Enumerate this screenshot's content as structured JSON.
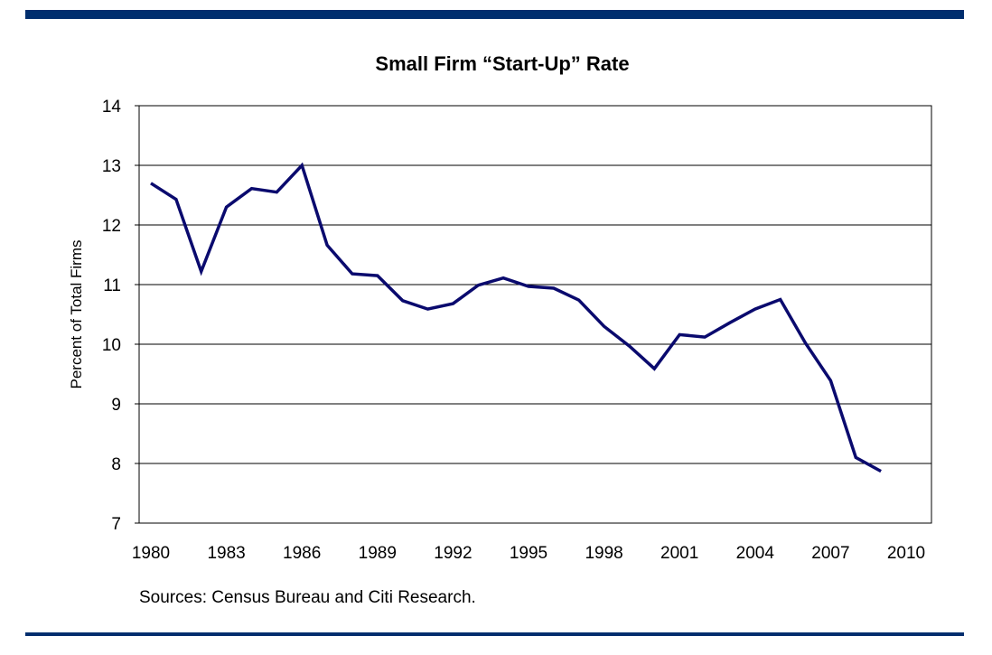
{
  "colors": {
    "bar": "#002e6e",
    "line": "#0a0a6e",
    "grid": "#000000"
  },
  "chart_data": {
    "type": "line",
    "title": "Small Firm “Start-Up” Rate",
    "xlabel": "",
    "ylabel": "Percent of Total Firms",
    "ylim": [
      7,
      14
    ],
    "xlim": [
      1980,
      2010
    ],
    "yticks": [
      "14",
      "13",
      "12",
      "11",
      "10",
      "9",
      "8",
      "7"
    ],
    "yticks_values": [
      14,
      13,
      12,
      11,
      10,
      9,
      8,
      7
    ],
    "xticks": [
      "1980",
      "1983",
      "1986",
      "1989",
      "1992",
      "1995",
      "1998",
      "2001",
      "2004",
      "2007",
      "2010"
    ],
    "xticks_values": [
      1980,
      1983,
      1986,
      1989,
      1992,
      1995,
      1998,
      2001,
      2004,
      2007,
      2010
    ],
    "grid": true,
    "legend": "none",
    "annotation": "Sources: Census Bureau and Citi Research.",
    "series": [
      {
        "name": "Small Firm Start-Up Rate",
        "x": [
          1980,
          1981,
          1982,
          1983,
          1984,
          1985,
          1986,
          1987,
          1988,
          1989,
          1990,
          1991,
          1992,
          1993,
          1994,
          1995,
          1996,
          1997,
          1998,
          1999,
          2000,
          2001,
          2002,
          2003,
          2004,
          2005,
          2006,
          2007,
          2008,
          2009
        ],
        "values": [
          12.7,
          12.43,
          11.22,
          12.3,
          12.61,
          12.55,
          13.0,
          11.66,
          11.18,
          11.15,
          10.73,
          10.59,
          10.68,
          10.99,
          11.11,
          10.97,
          10.94,
          10.74,
          10.3,
          9.97,
          9.59,
          10.16,
          10.12,
          10.36,
          10.59,
          10.75,
          10.02,
          9.39,
          8.1,
          7.87
        ]
      }
    ]
  }
}
